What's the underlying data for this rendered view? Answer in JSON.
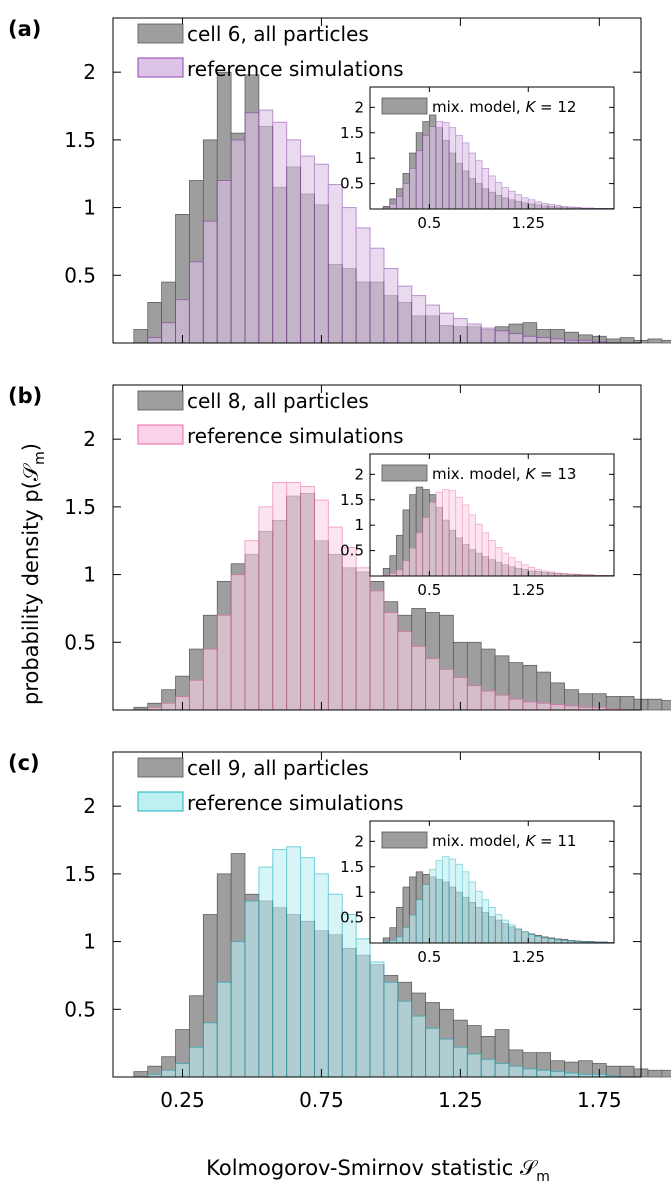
{
  "figure": {
    "ylabel": "probability density p(𝒮",
    "ylabel_sub": "m",
    "ylabel_close": ")",
    "xlabel": "Kolmogorov-Smirnov statistic 𝒮",
    "xlabel_sub": "m"
  },
  "colors": {
    "empirical": "#9e9e9e",
    "edge": "#555555",
    "a": {
      "fill": "#ddc3e6",
      "stroke": "#8e44ad"
    },
    "b": {
      "fill": "#fbd3e8",
      "stroke": "#e86aa8"
    },
    "c": {
      "fill": "#bdeff3",
      "stroke": "#1bb0c3"
    }
  },
  "chart_data": [
    {
      "type": "bar",
      "panel_label": "(a)",
      "xlim": [
        0,
        1.9
      ],
      "ylim": [
        0,
        2.4
      ],
      "bin_width": 0.05,
      "x_tick_values": [
        0.25,
        0.75,
        1.25,
        1.75
      ],
      "x_tick_labels": [],
      "y_ticks": [
        "0.5",
        "1",
        "1.5",
        "2"
      ],
      "y_tick_values": [
        0.5,
        1,
        1.5,
        2
      ],
      "legend": [
        "cell 6, all particles",
        "reference simulations"
      ],
      "series": [
        {
          "name": "cell 6, all particles",
          "x_start": 0.075,
          "values": [
            0.1,
            0.3,
            0.45,
            0.95,
            1.2,
            1.5,
            2.0,
            1.55,
            1.98,
            1.6,
            1.15,
            1.3,
            1.1,
            1.02,
            0.58,
            0.55,
            0.45,
            0.45,
            0.35,
            0.3,
            0.2,
            0.2,
            0.13,
            0.12,
            0.12,
            0.1,
            0.12,
            0.14,
            0.15,
            0.1,
            0.1,
            0.08,
            0.06,
            0.05,
            0.03,
            0.04,
            0.02,
            0.03,
            0.02
          ]
        },
        {
          "name": "reference simulations",
          "x_start": 0.125,
          "values": [
            0.04,
            0.15,
            0.32,
            0.6,
            0.9,
            1.2,
            1.5,
            1.7,
            1.72,
            1.63,
            1.5,
            1.38,
            1.32,
            1.17,
            1.0,
            0.85,
            0.7,
            0.55,
            0.42,
            0.35,
            0.28,
            0.22,
            0.18,
            0.14,
            0.11,
            0.09,
            0.07,
            0.05,
            0.04,
            0.03,
            0.02,
            0.02,
            0.01
          ]
        }
      ],
      "inset": {
        "legend": "mix. model, K = 12",
        "xlim": [
          0.05,
          1.9
        ],
        "ylim": [
          0,
          2.4
        ],
        "bin_width": 0.05,
        "x_tick_values": [
          0.5,
          1.25
        ],
        "x_tick_labels": [
          "0.5",
          "1.25"
        ],
        "y_tick_values": [
          0.5,
          1,
          1.5,
          2
        ],
        "y_tick_labels": [
          "0.5",
          "1",
          "1.5",
          "2"
        ],
        "series": [
          {
            "name": "mix. model, K = 12",
            "x_start": 0.15,
            "values": [
              0.05,
              0.2,
              0.4,
              0.7,
              1.1,
              1.5,
              1.72,
              1.85,
              1.6,
              1.35,
              1.1,
              0.9,
              0.75,
              0.6,
              0.5,
              0.4,
              0.33,
              0.27,
              0.22,
              0.18,
              0.15,
              0.12,
              0.1,
              0.08,
              0.06,
              0.05,
              0.04,
              0.03,
              0.02,
              0.02,
              0.01,
              0.01,
              0.01,
              0.01,
              0.01
            ]
          },
          {
            "name": "reference simulations",
            "x_start": 0.15,
            "values": [
              0.03,
              0.1,
              0.25,
              0.5,
              0.8,
              1.15,
              1.45,
              1.62,
              1.72,
              1.7,
              1.6,
              1.45,
              1.3,
              1.1,
              0.95,
              0.8,
              0.65,
              0.52,
              0.42,
              0.35,
              0.28,
              0.22,
              0.18,
              0.14,
              0.11,
              0.09,
              0.07,
              0.05,
              0.04,
              0.03,
              0.02,
              0.02,
              0.01,
              0.01,
              0.01
            ]
          }
        ]
      }
    },
    {
      "type": "bar",
      "panel_label": "(b)",
      "xlim": [
        0,
        1.9
      ],
      "ylim": [
        0,
        2.4
      ],
      "bin_width": 0.05,
      "x_tick_values": [
        0.25,
        0.75,
        1.25,
        1.75
      ],
      "x_tick_labels": [],
      "y_ticks": [
        "0.5",
        "1",
        "1.5",
        "2"
      ],
      "y_tick_values": [
        0.5,
        1,
        1.5,
        2
      ],
      "legend": [
        "cell 8, all particles",
        "reference simulations"
      ],
      "series": [
        {
          "name": "cell 8, all particles",
          "x_start": 0.075,
          "values": [
            0.02,
            0.05,
            0.15,
            0.25,
            0.45,
            0.7,
            0.95,
            1.08,
            1.15,
            1.32,
            1.4,
            1.58,
            1.6,
            1.25,
            1.15,
            1.05,
            1.02,
            0.95,
            0.8,
            0.7,
            0.75,
            0.72,
            0.7,
            0.5,
            0.5,
            0.45,
            0.4,
            0.35,
            0.33,
            0.28,
            0.2,
            0.15,
            0.12,
            0.12,
            0.1,
            0.1,
            0.08,
            0.08,
            0.07,
            0.06,
            0.07,
            0.06,
            0.05,
            0.04,
            0.05,
            0.04
          ]
        },
        {
          "name": "reference simulations",
          "x_start": 0.125,
          "values": [
            0.02,
            0.05,
            0.1,
            0.22,
            0.45,
            0.7,
            1.0,
            1.25,
            1.5,
            1.68,
            1.68,
            1.65,
            1.55,
            1.35,
            1.2,
            1.05,
            0.88,
            0.72,
            0.58,
            0.47,
            0.38,
            0.3,
            0.24,
            0.18,
            0.14,
            0.11,
            0.08,
            0.06,
            0.05,
            0.04,
            0.03,
            0.02,
            0.02,
            0.01
          ]
        }
      ],
      "inset": {
        "legend": "mix. model, K = 13",
        "xlim": [
          0.05,
          1.9
        ],
        "ylim": [
          0,
          2.4
        ],
        "bin_width": 0.05,
        "x_tick_values": [
          0.5,
          1.25
        ],
        "x_tick_labels": [
          "0.5",
          "1.25"
        ],
        "y_tick_values": [
          0.5,
          1,
          1.5,
          2
        ],
        "y_tick_labels": [
          "0.5",
          "1",
          "1.5",
          "2"
        ],
        "series": [
          {
            "name": "mix. model, K = 13",
            "x_start": 0.15,
            "values": [
              0.15,
              0.4,
              0.8,
              1.3,
              1.6,
              1.75,
              1.7,
              1.6,
              1.35,
              1.1,
              0.9,
              0.75,
              0.62,
              0.52,
              0.45,
              0.38,
              0.32,
              0.27,
              0.22,
              0.18,
              0.15,
              0.13,
              0.1,
              0.09,
              0.07,
              0.06,
              0.05,
              0.04,
              0.03,
              0.03,
              0.02,
              0.02,
              0.01,
              0.01,
              0.01
            ]
          },
          {
            "name": "reference simulations",
            "x_start": 0.15,
            "values": [
              0.02,
              0.05,
              0.12,
              0.3,
              0.55,
              0.85,
              1.15,
              1.45,
              1.65,
              1.7,
              1.68,
              1.55,
              1.4,
              1.2,
              1.02,
              0.85,
              0.7,
              0.56,
              0.45,
              0.36,
              0.28,
              0.22,
              0.17,
              0.13,
              0.1,
              0.08,
              0.06,
              0.05,
              0.04,
              0.03,
              0.02,
              0.02,
              0.01,
              0.01,
              0.01
            ]
          }
        ]
      }
    },
    {
      "type": "bar",
      "panel_label": "(c)",
      "xlim": [
        0,
        1.9
      ],
      "ylim": [
        0,
        2.4
      ],
      "bin_width": 0.05,
      "x_tick_values": [
        0.25,
        0.75,
        1.25,
        1.75
      ],
      "x_tick_labels": [
        "0.25",
        "0.75",
        "1.25",
        "1.75"
      ],
      "y_ticks": [
        "0.5",
        "1",
        "1.5",
        "2"
      ],
      "y_tick_values": [
        0.5,
        1,
        1.5,
        2
      ],
      "legend": [
        "cell 9, all particles",
        "reference simulations"
      ],
      "series": [
        {
          "name": "cell 9, all particles",
          "x_start": 0.075,
          "values": [
            0.04,
            0.08,
            0.15,
            0.35,
            0.6,
            1.2,
            1.5,
            1.65,
            1.35,
            1.3,
            1.25,
            1.2,
            1.15,
            1.08,
            1.05,
            0.95,
            0.9,
            0.83,
            0.75,
            0.7,
            0.62,
            0.55,
            0.5,
            0.42,
            0.38,
            0.3,
            0.35,
            0.2,
            0.18,
            0.18,
            0.12,
            0.11,
            0.12,
            0.1,
            0.08,
            0.08,
            0.06,
            0.05,
            0.05,
            0.04,
            0.03,
            0.03,
            0.02,
            0.02,
            0.02,
            0.02
          ]
        },
        {
          "name": "reference simulations",
          "x_start": 0.125,
          "values": [
            0.02,
            0.05,
            0.1,
            0.22,
            0.4,
            0.7,
            1.0,
            1.3,
            1.55,
            1.68,
            1.7,
            1.62,
            1.5,
            1.35,
            1.2,
            1.02,
            0.85,
            0.7,
            0.56,
            0.45,
            0.36,
            0.28,
            0.22,
            0.17,
            0.13,
            0.1,
            0.08,
            0.06,
            0.05,
            0.04,
            0.03,
            0.02,
            0.02,
            0.01
          ]
        }
      ],
      "inset": {
        "legend": "mix. model, K = 11",
        "xlim": [
          0.05,
          1.9
        ],
        "ylim": [
          0,
          2.4
        ],
        "bin_width": 0.05,
        "x_tick_values": [
          0.5,
          1.25
        ],
        "x_tick_labels": [
          "0.5",
          "1.25"
        ],
        "y_tick_values": [
          0.5,
          1,
          1.5,
          2
        ],
        "y_tick_labels": [
          "0.5",
          "1",
          "1.5",
          "2"
        ],
        "series": [
          {
            "name": "mix. model, K = 11",
            "x_start": 0.15,
            "values": [
              0.1,
              0.3,
              0.7,
              1.1,
              1.3,
              1.4,
              1.35,
              1.3,
              1.25,
              1.2,
              1.1,
              1.0,
              0.9,
              0.8,
              0.7,
              0.6,
              0.52,
              0.45,
              0.38,
              0.32,
              0.27,
              0.22,
              0.18,
              0.15,
              0.12,
              0.1,
              0.08,
              0.07,
              0.05,
              0.04,
              0.03,
              0.03,
              0.02,
              0.02,
              0.01
            ]
          },
          {
            "name": "reference simulations",
            "x_start": 0.15,
            "values": [
              0.02,
              0.05,
              0.12,
              0.3,
              0.55,
              0.85,
              1.15,
              1.45,
              1.62,
              1.7,
              1.65,
              1.55,
              1.4,
              1.2,
              1.02,
              0.85,
              0.7,
              0.56,
              0.45,
              0.36,
              0.28,
              0.22,
              0.17,
              0.13,
              0.1,
              0.08,
              0.06,
              0.05,
              0.04,
              0.03,
              0.02,
              0.02,
              0.01,
              0.01,
              0.01
            ]
          }
        ]
      }
    }
  ]
}
